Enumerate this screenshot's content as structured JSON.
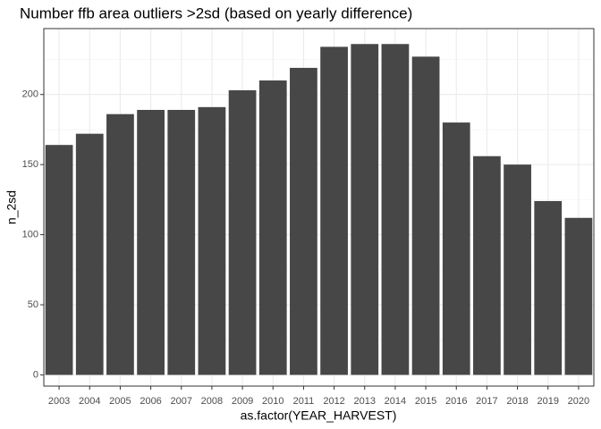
{
  "chart_data": {
    "type": "bar",
    "title": "Number ffb area outliers >2sd (based on yearly difference)",
    "x_label": "as.factor(YEAR_HARVEST)",
    "y_label": "n_2sd",
    "categories": [
      "2003",
      "2004",
      "2005",
      "2006",
      "2007",
      "2008",
      "2009",
      "2010",
      "2011",
      "2012",
      "2013",
      "2014",
      "2015",
      "2016",
      "2017",
      "2018",
      "2019",
      "2020"
    ],
    "values": [
      164,
      172,
      186,
      189,
      189,
      191,
      203,
      210,
      219,
      234,
      236,
      236,
      227,
      180,
      156,
      150,
      124,
      112
    ],
    "color": "#474747",
    "ylim": [
      -8,
      247
    ],
    "yticks": [
      0,
      50,
      100,
      150,
      200
    ],
    "yminor": [
      25,
      75,
      125,
      175,
      225
    ],
    "grid": true
  }
}
